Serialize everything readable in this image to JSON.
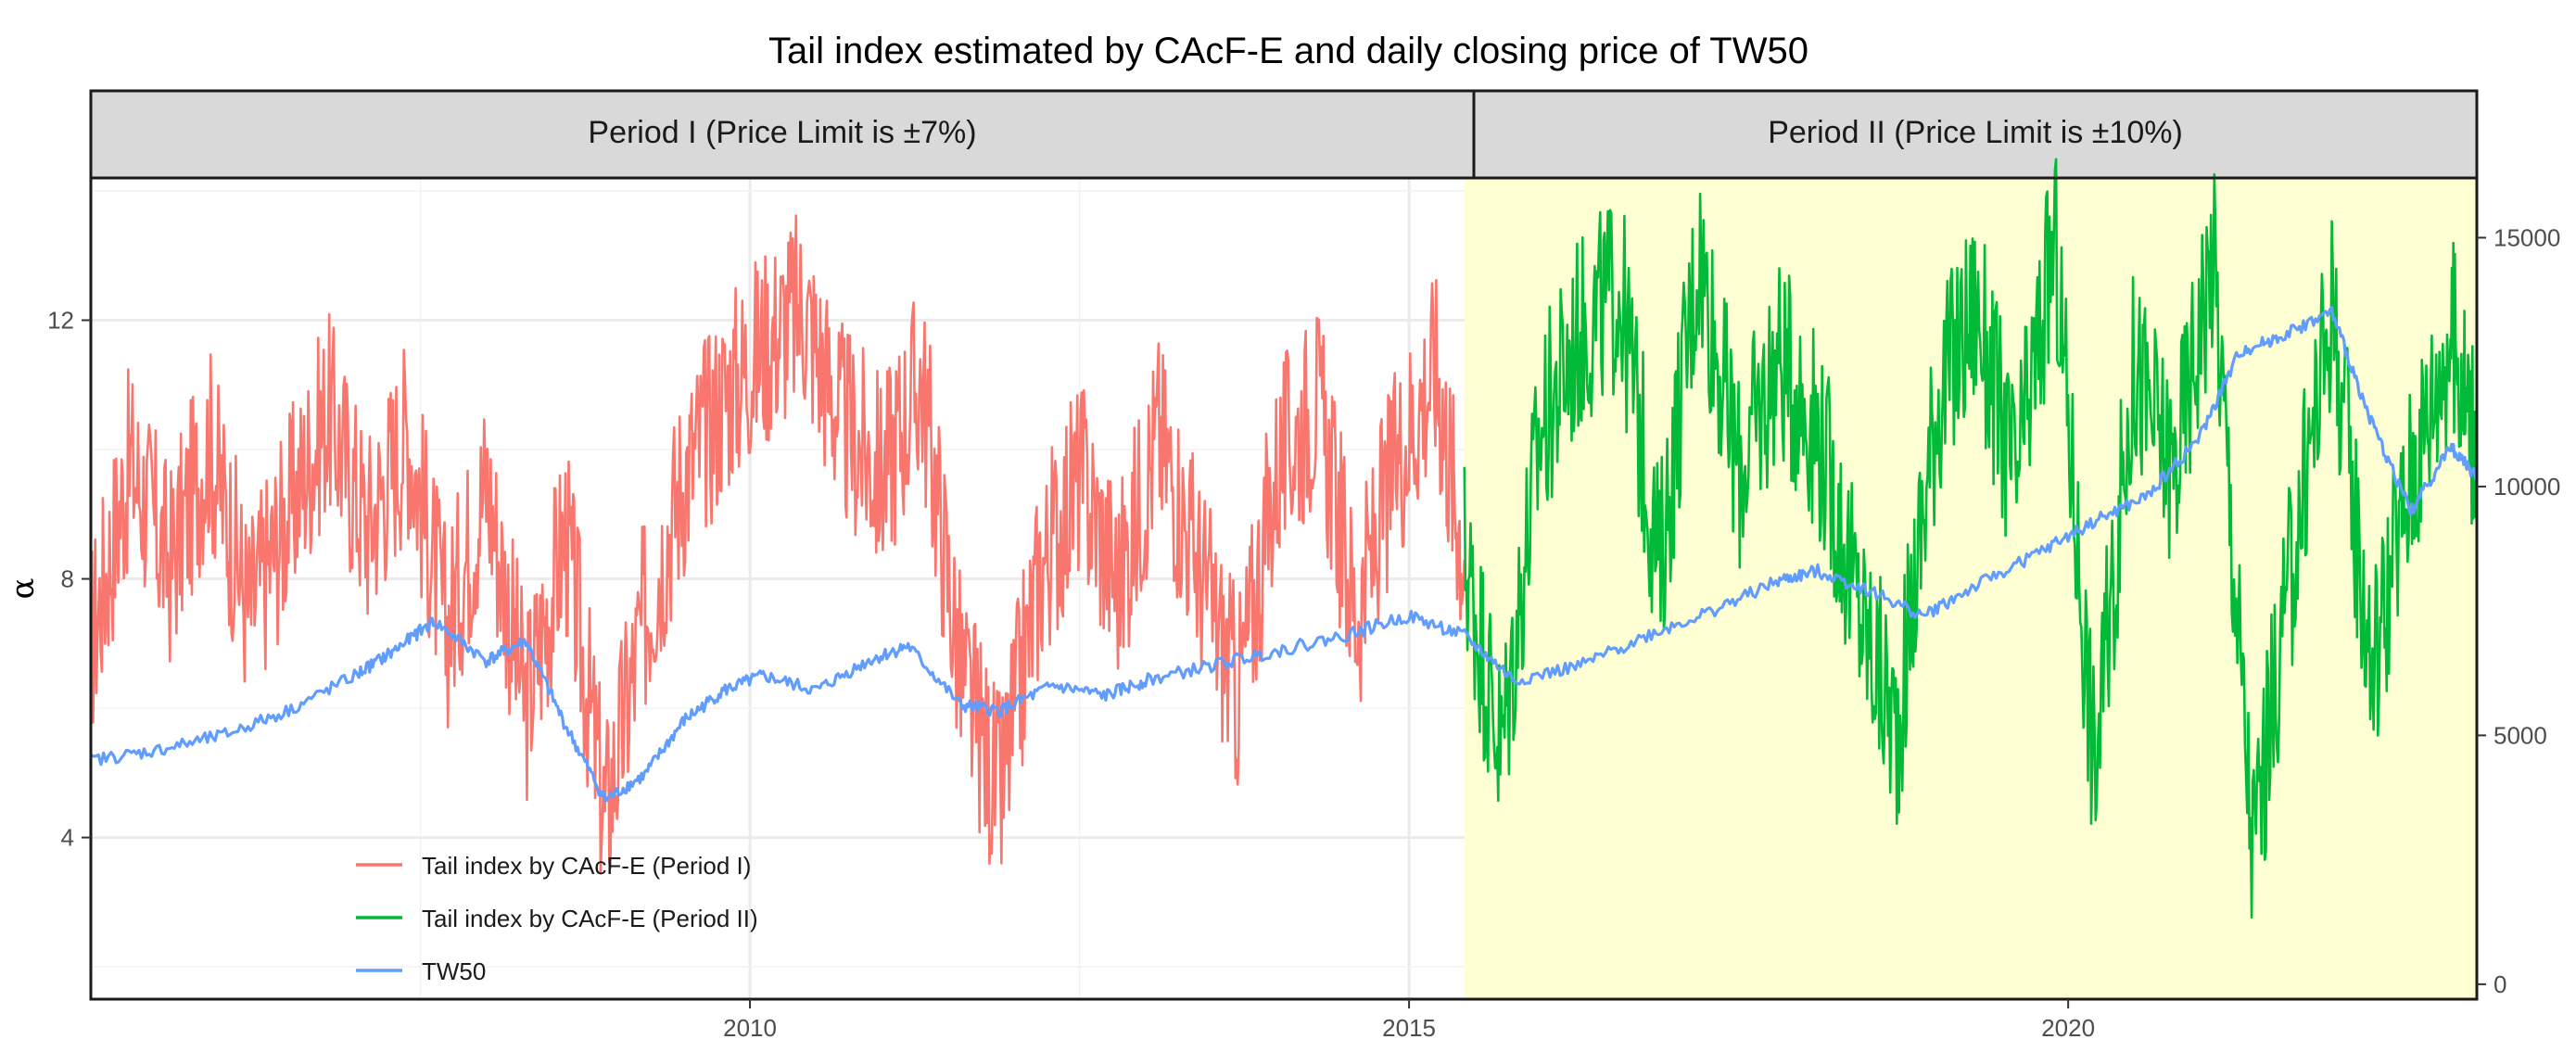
{
  "chart_data": {
    "type": "line",
    "title": "Tail index estimated by CAcF-E and daily closing price of TW50",
    "facets": [
      "Period I (Price Limit is ±7%)",
      "Period II (Price Limit is ±10%)"
    ],
    "period_boundary_year": 2015.42,
    "xlim": [
      2005.0,
      2023.1
    ],
    "x_ticks": [
      2010,
      2015,
      2020
    ],
    "x_tick_labels": [
      "2010",
      "2015",
      "2020"
    ],
    "ylabel": "α",
    "ylim": [
      1.5,
      14.2
    ],
    "y_ticks": [
      4,
      8,
      12
    ],
    "y_tick_labels": [
      "4",
      "8",
      "12"
    ],
    "y2lim": [
      -300,
      16200
    ],
    "y2_ticks": [
      0,
      5000,
      10000,
      15000
    ],
    "y2_tick_labels": [
      "0",
      "5000",
      "10000",
      "15000"
    ],
    "highlight_region": {
      "from": 2015.42,
      "to": 2023.1,
      "color": "#ffffd4"
    },
    "series": [
      {
        "name": "Tail index by CAcF-E (Period I)",
        "axis": "left",
        "color": "#f8766d",
        "x": [
          2005.0,
          2005.3,
          2005.6,
          2005.9,
          2006.2,
          2006.5,
          2006.8,
          2007.1,
          2007.4,
          2007.7,
          2008.0,
          2008.3,
          2008.6,
          2008.9,
          2009.2,
          2009.5,
          2009.8,
          2010.1,
          2010.4,
          2010.7,
          2011.0,
          2011.3,
          2011.6,
          2011.9,
          2012.2,
          2012.5,
          2012.8,
          2013.1,
          2013.4,
          2013.7,
          2014.0,
          2014.3,
          2014.6,
          2014.9,
          2015.2,
          2015.42
        ],
        "values": [
          7.0,
          9.8,
          8.2,
          10.1,
          7.5,
          9.0,
          10.6,
          8.8,
          10.3,
          7.2,
          9.5,
          6.0,
          8.7,
          4.3,
          7.4,
          9.6,
          10.8,
          11.6,
          12.2,
          10.4,
          9.6,
          11.1,
          6.5,
          4.6,
          8.1,
          9.6,
          7.9,
          10.3,
          8.2,
          6.2,
          9.7,
          10.8,
          7.4,
          9.8,
          11.3,
          8.3
        ]
      },
      {
        "name": "Tail index by CAcF-E (Period II)",
        "axis": "left",
        "color": "#00ba38",
        "x": [
          2015.42,
          2015.7,
          2016.0,
          2016.3,
          2016.6,
          2016.9,
          2017.2,
          2017.5,
          2017.8,
          2018.1,
          2018.4,
          2018.7,
          2019.0,
          2019.3,
          2019.6,
          2019.9,
          2020.2,
          2020.5,
          2020.8,
          2021.1,
          2021.4,
          2021.7,
          2022.0,
          2022.3,
          2022.6,
          2022.9,
          2023.1
        ],
        "values": [
          8.4,
          5.3,
          10.3,
          11.8,
          12.5,
          8.1,
          13.1,
          9.6,
          11.4,
          10.3,
          7.6,
          5.6,
          10.7,
          12.2,
          9.4,
          13.2,
          5.0,
          11.3,
          9.6,
          13.1,
          3.8,
          8.2,
          12.3,
          6.6,
          9.6,
          11.8,
          10.1
        ]
      },
      {
        "name": "TW50",
        "axis": "right",
        "color": "#619cff",
        "x": [
          2005.0,
          2005.5,
          2006.0,
          2006.5,
          2007.0,
          2007.3,
          2007.6,
          2008.0,
          2008.3,
          2008.6,
          2008.9,
          2009.2,
          2009.5,
          2009.8,
          2010.1,
          2010.5,
          2010.9,
          2011.2,
          2011.6,
          2011.9,
          2012.3,
          2012.7,
          2013.0,
          2013.5,
          2014.0,
          2014.5,
          2015.0,
          2015.42,
          2015.8,
          2016.3,
          2016.8,
          2017.3,
          2017.8,
          2018.1,
          2018.5,
          2018.9,
          2019.3,
          2019.8,
          2020.2,
          2020.6,
          2021.0,
          2021.3,
          2021.6,
          2022.0,
          2022.3,
          2022.6,
          2022.9,
          2023.1
        ],
        "values": [
          4500,
          4700,
          5000,
          5500,
          6200,
          6700,
          7300,
          6500,
          6900,
          5200,
          3700,
          4200,
          5300,
          5900,
          6200,
          5900,
          6500,
          6800,
          5600,
          5500,
          6000,
          5800,
          6100,
          6400,
          6700,
          7000,
          7400,
          7000,
          6100,
          6400,
          7000,
          7500,
          8100,
          8300,
          7900,
          7400,
          8000,
          8700,
          9300,
          9800,
          11000,
          12700,
          13000,
          13500,
          11300,
          9500,
          10800,
          10200
        ]
      }
    ],
    "legend": {
      "placement": "bottom-left",
      "entries": [
        "Tail index by CAcF-E (Period I)",
        "Tail index by CAcF-E (Period II)",
        "TW50"
      ]
    }
  }
}
